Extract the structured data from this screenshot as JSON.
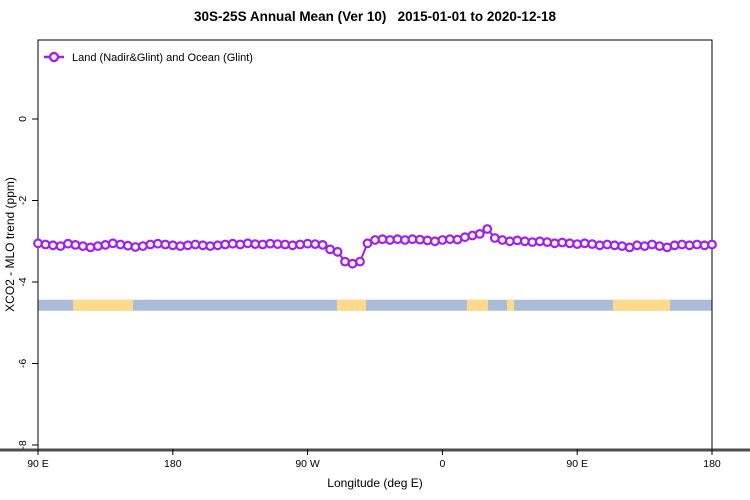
{
  "page": {
    "background": "#FFFFFF"
  },
  "chart_data": {
    "type": "line",
    "title": "30S-25S Annual Mean (Ver 10)   2015-01-01 to 2020-12-18",
    "xlabel": "Longitude (deg E)",
    "ylabel": "XCO2 - MLO trend (ppm)",
    "legend": {
      "label": "Land (Nadir&Glint) and Ocean (Glint)",
      "position": "top-left",
      "marker": "open-circle"
    },
    "line_color": "#A020F0",
    "marker_fill": "#FFFFFF",
    "axis_color": "#000000",
    "baseline_color": "#4D4D4D",
    "grid": false,
    "x_axis": {
      "span_deg": 450,
      "ticks_offset_deg": [
        0,
        90,
        180,
        270,
        360,
        450
      ],
      "tick_labels": [
        "90 E",
        "180",
        "90 W",
        "0",
        "90 E",
        "180"
      ]
    },
    "y_axis": {
      "ticks": [
        0,
        -2,
        -4,
        -6,
        -8
      ],
      "tick_labels": [
        "0",
        "-2",
        "-4",
        "-6",
        "-8"
      ],
      "range": [
        -8.1,
        1.9
      ]
    },
    "series": [
      {
        "name": "Land (Nadir&Glint) and Ocean (Glint)",
        "start_offset_deg": 0,
        "step_deg": 5,
        "values": [
          -3.05,
          -3.08,
          -3.1,
          -3.12,
          -3.06,
          -3.09,
          -3.12,
          -3.15,
          -3.12,
          -3.09,
          -3.05,
          -3.08,
          -3.11,
          -3.14,
          -3.12,
          -3.08,
          -3.06,
          -3.08,
          -3.1,
          -3.12,
          -3.1,
          -3.08,
          -3.1,
          -3.12,
          -3.1,
          -3.08,
          -3.06,
          -3.08,
          -3.05,
          -3.07,
          -3.08,
          -3.06,
          -3.07,
          -3.08,
          -3.1,
          -3.08,
          -3.06,
          -3.07,
          -3.09,
          -3.2,
          -3.26,
          -3.5,
          -3.55,
          -3.5,
          -3.05,
          -2.97,
          -2.95,
          -2.97,
          -2.95,
          -2.97,
          -2.95,
          -2.96,
          -2.98,
          -3.0,
          -2.97,
          -2.95,
          -2.96,
          -2.9,
          -2.86,
          -2.82,
          -2.7,
          -2.92,
          -2.97,
          -3.0,
          -2.98,
          -3.0,
          -3.02,
          -3.0,
          -3.02,
          -3.05,
          -3.03,
          -3.05,
          -3.07,
          -3.05,
          -3.07,
          -3.1,
          -3.08,
          -3.1,
          -3.12,
          -3.15,
          -3.1,
          -3.12,
          -3.08,
          -3.12,
          -3.15,
          -3.1,
          -3.08,
          -3.1,
          -3.08,
          -3.1,
          -3.08
        ]
      }
    ],
    "surface_band": {
      "description": "land-ocean-indicator",
      "band_value": -4.57,
      "ocean_color": "#A9BDD9",
      "land_color": "#FFD98C",
      "land_segments_offset_deg": [
        [
          23.4,
          63.4
        ],
        [
          199.6,
          219.0
        ],
        [
          286.4,
          300.4
        ],
        [
          313.2,
          317.8
        ],
        [
          383.9,
          422.0
        ]
      ]
    }
  }
}
